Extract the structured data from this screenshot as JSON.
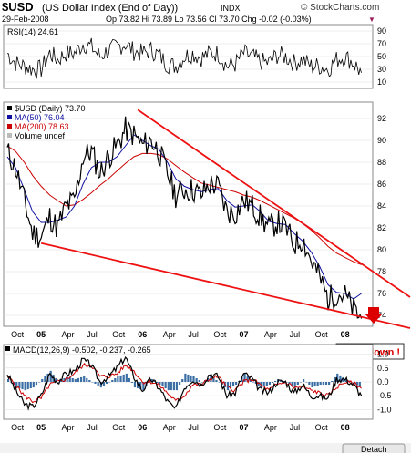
{
  "header": {
    "symbol": "$USD",
    "name": "(US Dollar Index (End of Day))",
    "exchange": "INDX",
    "brand": "© StockCharts.com",
    "date": "29-Feb-2008",
    "ohlc": "Op 73.82  Hi 73.89  Lo 73.56  Cl 73.70  Chg -0.02 (-0.03%)"
  },
  "rsi_panel": {
    "label": "RSI(14) 24.61",
    "ticks": [
      "90",
      "70",
      "50",
      "30",
      "10"
    ],
    "range": [
      0,
      100
    ]
  },
  "price_panel": {
    "legend": [
      {
        "text": "$USD (Daily) 73.70",
        "color": "#000000"
      },
      {
        "text": "MA(50) 76.04",
        "color": "#1010a0"
      },
      {
        "text": "MA(200) 78.63",
        "color": "#cc0000"
      },
      {
        "text": "Volume undef",
        "color": "#000000"
      }
    ],
    "ticks": [
      "92",
      "90",
      "88",
      "86",
      "84",
      "82",
      "80",
      "78",
      "76",
      "74"
    ],
    "range": [
      73,
      93.5
    ]
  },
  "macd_panel": {
    "label": "MACD(12,26,9) -0.502, -0.237, -0.265",
    "ticks": [
      "1.0",
      "0.5",
      "0.0",
      "-0.5",
      "-1.0"
    ],
    "range": [
      -1.35,
      1.35
    ]
  },
  "x_axis": {
    "labels": [
      "Oct",
      "05",
      "Apr",
      "Jul",
      "Oct",
      "06",
      "Apr",
      "Jul",
      "Oct",
      "07",
      "Apr",
      "Jul",
      "Oct",
      "08"
    ]
  },
  "annotation": {
    "text": "Breakdown !",
    "color": "#dd0000"
  },
  "footer": {
    "button": "Detach"
  },
  "colors": {
    "price": "#000000",
    "ma50": "#1010a0",
    "ma200": "#cc0000",
    "trendline": "#ee1111",
    "macd_hist": "#3a6ea5",
    "grid": "#dddddd"
  },
  "chart_data": {
    "type": "line",
    "x": [
      "2004-09-01",
      "2004-10-01",
      "2004-11-01",
      "2004-12-01",
      "2005-01-01",
      "2005-02-01",
      "2005-03-01",
      "2005-04-01",
      "2005-05-01",
      "2005-06-01",
      "2005-07-01",
      "2005-08-01",
      "2005-09-01",
      "2005-10-01",
      "2005-11-01",
      "2005-12-01",
      "2006-01-01",
      "2006-02-01",
      "2006-03-01",
      "2006-04-01",
      "2006-05-01",
      "2006-06-01",
      "2006-07-01",
      "2006-08-01",
      "2006-09-01",
      "2006-10-01",
      "2006-11-01",
      "2006-12-01",
      "2007-01-01",
      "2007-02-01",
      "2007-03-01",
      "2007-04-01",
      "2007-05-01",
      "2007-06-01",
      "2007-07-01",
      "2007-08-01",
      "2007-09-01",
      "2007-10-01",
      "2007-11-01",
      "2007-12-01",
      "2008-01-01",
      "2008-02-01",
      "2008-02-29"
    ],
    "series": [
      {
        "name": "$USD (Daily) 73.70",
        "values": [
          89.0,
          87.5,
          84.5,
          81.5,
          81.2,
          83.0,
          82.0,
          84.0,
          84.5,
          88.5,
          89.0,
          87.0,
          88.5,
          89.5,
          91.0,
          90.5,
          89.5,
          90.0,
          89.0,
          87.0,
          85.0,
          85.5,
          85.5,
          85.0,
          86.0,
          85.8,
          83.5,
          83.3,
          84.5,
          84.0,
          83.0,
          82.0,
          82.5,
          82.0,
          80.5,
          81.0,
          79.0,
          77.5,
          75.5,
          76.0,
          75.8,
          74.5,
          73.7
        ]
      },
      {
        "name": "MA(50) 76.04",
        "values": [
          88.5,
          87.5,
          85.5,
          83.5,
          82.5,
          82.5,
          82.7,
          83.0,
          84.0,
          86.0,
          87.5,
          88.0,
          88.0,
          88.5,
          89.5,
          90.5,
          90.0,
          89.5,
          89.2,
          88.0,
          86.5,
          85.8,
          85.5,
          85.3,
          85.5,
          85.6,
          84.5,
          83.9,
          84.0,
          84.1,
          83.5,
          82.6,
          82.4,
          82.3,
          81.5,
          80.8,
          79.8,
          78.5,
          76.8,
          76.1,
          76.0,
          75.5,
          76.0
        ]
      },
      {
        "name": "MA(200) 78.63",
        "values": [
          89.5,
          89.0,
          88.0,
          86.8,
          85.8,
          85.0,
          84.5,
          84.0,
          84.1,
          84.6,
          85.2,
          85.9,
          86.5,
          87.2,
          87.9,
          88.5,
          88.8,
          88.8,
          88.7,
          88.3,
          87.7,
          87.1,
          86.6,
          86.1,
          85.9,
          85.7,
          85.5,
          85.3,
          85.0,
          84.8,
          84.5,
          84.1,
          83.7,
          83.3,
          82.9,
          82.4,
          81.8,
          81.1,
          80.3,
          79.7,
          79.3,
          78.9,
          78.63
        ]
      },
      {
        "name": "RSI(14) 24.61",
        "values": [
          55,
          40,
          35,
          30,
          30,
          55,
          45,
          55,
          55,
          70,
          65,
          50,
          60,
          65,
          70,
          58,
          55,
          60,
          52,
          38,
          35,
          50,
          55,
          48,
          55,
          55,
          35,
          38,
          55,
          50,
          42,
          40,
          52,
          50,
          40,
          45,
          35,
          35,
          30,
          45,
          50,
          40,
          24.61
        ]
      },
      {
        "name": "MACD(12,26,9)",
        "values": [
          0.3,
          -0.3,
          -0.8,
          -0.9,
          -0.5,
          0.3,
          0.0,
          0.3,
          0.4,
          0.8,
          0.6,
          0.0,
          0.2,
          0.5,
          0.9,
          0.2,
          -0.3,
          0.1,
          -0.2,
          -0.7,
          -1.0,
          -0.2,
          0.1,
          -0.1,
          0.3,
          0.2,
          -0.5,
          -0.4,
          0.3,
          0.1,
          -0.3,
          -0.4,
          0.0,
          0.0,
          -0.4,
          -0.1,
          -0.5,
          -0.5,
          -0.6,
          0.1,
          0.1,
          -0.1,
          -0.502
        ]
      },
      {
        "name": "Signal",
        "values": [
          0.2,
          -0.1,
          -0.5,
          -0.7,
          -0.6,
          -0.1,
          0.0,
          0.1,
          0.3,
          0.6,
          0.6,
          0.2,
          0.2,
          0.3,
          0.6,
          0.4,
          0.0,
          0.0,
          -0.1,
          -0.4,
          -0.7,
          -0.5,
          -0.1,
          -0.1,
          0.1,
          0.2,
          -0.2,
          -0.3,
          0.0,
          0.1,
          -0.1,
          -0.3,
          -0.1,
          0.0,
          -0.2,
          -0.2,
          -0.3,
          -0.4,
          -0.5,
          -0.2,
          0.0,
          -0.05,
          -0.237
        ]
      }
    ],
    "trendlines": [
      {
        "name": "upper",
        "points": [
          [
            "2005-12-15",
            92.8
          ],
          [
            "2008-03-31",
            77.0
          ]
        ]
      },
      {
        "name": "lower",
        "points": [
          [
            "2005-01-01",
            80.6
          ],
          [
            "2008-03-31",
            73.5
          ]
        ]
      }
    ]
  }
}
